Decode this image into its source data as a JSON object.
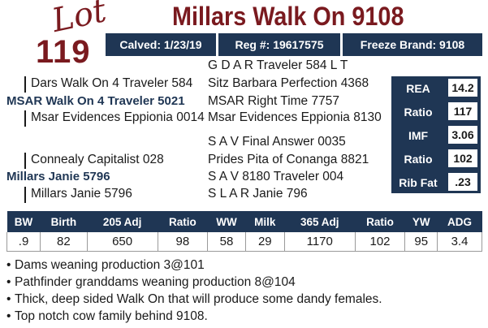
{
  "lot": {
    "word": "Lot",
    "number": "119"
  },
  "title": "Millars Walk On 9108",
  "info_bar": {
    "calved": "Calved: 1/23/19",
    "reg": "Reg #: 19617575",
    "freeze_brand": "Freeze Brand: 9108"
  },
  "pedigree": {
    "sire_sire_sire": "G D A R Traveler 584 L T",
    "sire_sire": "Dars Walk On 4 Traveler 584",
    "sire_sire_dam": "Sitz Barbara Perfection 4368",
    "sire": "MSAR Walk On 4 Traveler 5021",
    "sire_dam_sire": "MSAR Right Time 7757",
    "sire_dam": "Msar Evidences Eppionia 0014",
    "sire_dam_dam": "Msar Evidences Eppionia 8130",
    "dam_sire_sire": "S A V Final Answer 0035",
    "dam_sire": "Connealy Capitalist 028",
    "dam_sire_dam": "Prides Pita of Conanga 8821",
    "dam": "Millars Janie 5796",
    "dam_dam_sire": "S A V 8180 Traveler 004",
    "dam_dam": "Millars Janie 5796",
    "dam_dam_dam": "S L A R Janie 796"
  },
  "carcass": [
    {
      "label": "REA",
      "value": "14.2"
    },
    {
      "label": "Ratio",
      "value": "117"
    },
    {
      "label": "IMF",
      "value": "3.06"
    },
    {
      "label": "Ratio",
      "value": "102"
    },
    {
      "label": "Rib Fat",
      "value": ".23"
    }
  ],
  "performance": {
    "headers": [
      "BW",
      "Birth",
      "205 Adj",
      "Ratio",
      "WW",
      "Milk",
      "365 Adj",
      "Ratio",
      "YW",
      "ADG"
    ],
    "values": [
      ".9",
      "82",
      "650",
      "98",
      "58",
      "29",
      "1170",
      "102",
      "95",
      "3.4"
    ]
  },
  "notes": [
    "Dams weaning production 3@101",
    "Pathfinder granddams weaning production 8@104",
    "Thick, deep sided Walk On that will produce some dandy females.",
    "Top notch cow family behind 9108."
  ],
  "colors": {
    "maroon": "#7a1a1f",
    "navy": "#1f3654"
  }
}
